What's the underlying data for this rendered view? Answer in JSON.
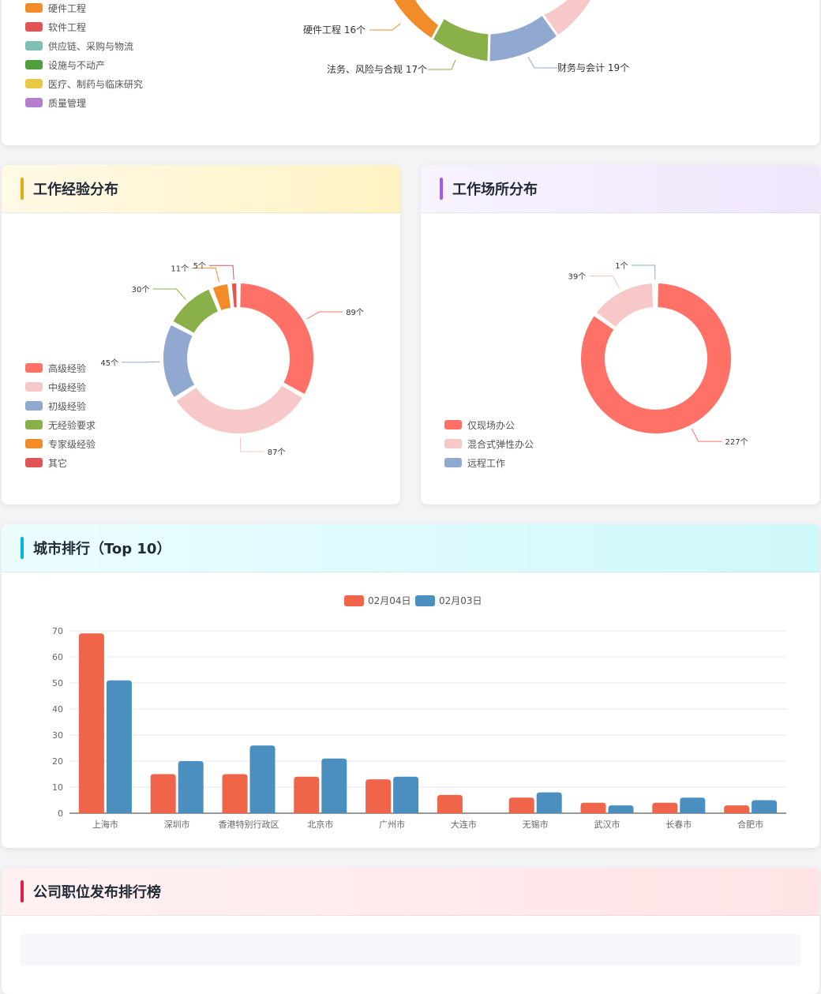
{
  "industry_card": {
    "legend": [
      {
        "label": "硬件工程",
        "color": "#f28c28"
      },
      {
        "label": "软件工程",
        "color": "#e05454"
      },
      {
        "label": "供应链、采购与物流",
        "color": "#7fbfb3"
      },
      {
        "label": "设施与不动产",
        "color": "#4f9f3f"
      },
      {
        "label": "医疗、制药与临床研究",
        "color": "#e9c846"
      },
      {
        "label": "质量管理",
        "color": "#b57dcc"
      }
    ],
    "callouts": {
      "hardware": "硬件工程 16个",
      "legal": "法务、风险与合规 17个",
      "finance": "财务与会计 19个"
    }
  },
  "experience_card": {
    "title": "工作经验分布",
    "legend": [
      {
        "label": "高级经验",
        "color": "#ff7066"
      },
      {
        "label": "中级经验",
        "color": "#f7c8c8"
      },
      {
        "label": "初级经验",
        "color": "#91a8d0"
      },
      {
        "label": "无经验要求",
        "color": "#8ab04a"
      },
      {
        "label": "专家级经验",
        "color": "#f28c28"
      },
      {
        "label": "其它",
        "color": "#e05454"
      }
    ],
    "slices": [
      {
        "label": "高级经验",
        "value": 89,
        "text": "89个",
        "color": "#ff7066"
      },
      {
        "label": "中级经验",
        "value": 87,
        "text": "87个",
        "color": "#f7c8c8"
      },
      {
        "label": "初级经验",
        "value": 45,
        "text": "45个",
        "color": "#91a8d0"
      },
      {
        "label": "无经验要求",
        "value": 30,
        "text": "30个",
        "color": "#8ab04a"
      },
      {
        "label": "专家级经验",
        "value": 11,
        "text": "11个",
        "color": "#f28c28"
      },
      {
        "label": "其它",
        "value": 5,
        "text": "5个",
        "color": "#e05454"
      }
    ]
  },
  "workplace_card": {
    "title": "工作场所分布",
    "legend": [
      {
        "label": "仅现场办公",
        "color": "#ff7066"
      },
      {
        "label": "混合式弹性办公",
        "color": "#f7c8c8"
      },
      {
        "label": "远程工作",
        "color": "#91a8d0"
      }
    ],
    "slices": [
      {
        "label": "仅现场办公",
        "value": 227,
        "text": "227个",
        "color": "#ff7066"
      },
      {
        "label": "混合式弹性办公",
        "value": 39,
        "text": "39个",
        "color": "#f7c8c8"
      },
      {
        "label": "远程工作",
        "value": 1,
        "text": "1个",
        "color": "#91a8d0"
      }
    ]
  },
  "city_card": {
    "title": "城市排行（Top 10）"
  },
  "company_card": {
    "title": "公司职位发布排行榜"
  },
  "chart_data": {
    "type": "bar",
    "title": "",
    "categories": [
      "上海市",
      "深圳市",
      "香港特别行政区",
      "北京市",
      "广州市",
      "大连市",
      "无锡市",
      "武汉市",
      "长春市",
      "合肥市"
    ],
    "series": [
      {
        "name": "02月04日",
        "color": "#f0654a",
        "values": [
          69,
          15,
          15,
          14,
          13,
          7,
          6,
          4,
          4,
          3
        ]
      },
      {
        "name": "02月03日",
        "color": "#4a8fc0",
        "values": [
          51,
          20,
          26,
          21,
          14,
          0,
          8,
          3,
          6,
          5
        ]
      }
    ],
    "ylim": [
      0,
      70
    ],
    "yticks": [
      0,
      10,
      20,
      30,
      40,
      50,
      60,
      70
    ],
    "grid": true,
    "legend": "top-center"
  }
}
